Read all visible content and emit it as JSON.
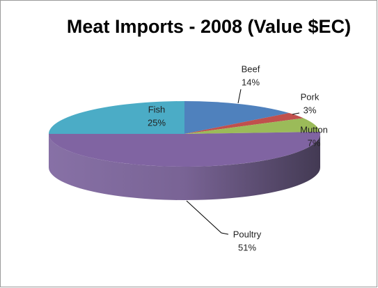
{
  "chart_data": {
    "type": "pie",
    "title": "Meat Imports - 2008 (Value $EC)",
    "categories": [
      "Beef",
      "Pork",
      "Mutton",
      "Poultry",
      "Fish"
    ],
    "values": [
      14,
      3,
      7,
      51,
      25
    ],
    "value_labels": [
      "14%",
      "3%",
      "7%",
      "51%",
      "25%"
    ],
    "colors": [
      "#4f81bd",
      "#c0504d",
      "#9bbb59",
      "#8064a2",
      "#4bacc6"
    ]
  }
}
